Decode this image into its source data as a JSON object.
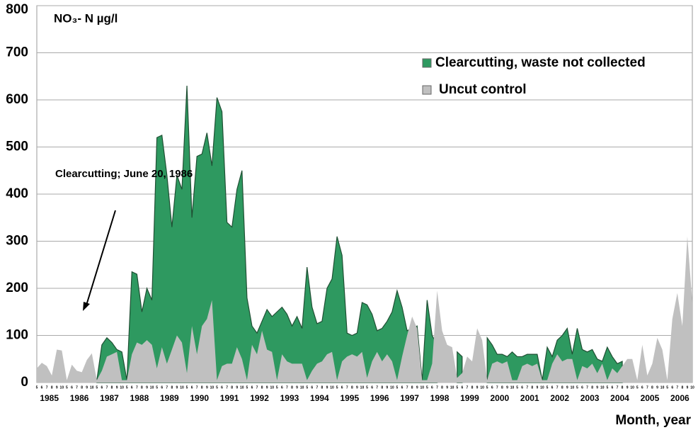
{
  "chart_data": {
    "type": "area",
    "title": "NO₃- N µg/l",
    "x_label": "Month, year",
    "annotation": "Clearcutting; June 20, 1986",
    "years": [
      "1985",
      "1986",
      "1987",
      "1988",
      "1989",
      "1990",
      "1991",
      "1992",
      "1993",
      "1994",
      "1995",
      "1996",
      "1997",
      "1998",
      "1999",
      "2000",
      "2001",
      "2002",
      "2003",
      "2004",
      "2005",
      "2006"
    ],
    "month_labels": [
      "5",
      "6",
      "7",
      "8",
      "9",
      "10"
    ],
    "ylim": [
      0,
      800
    ],
    "yticks": [
      0,
      100,
      200,
      300,
      400,
      500,
      600,
      700,
      800
    ],
    "grid": true,
    "legend": "upper right",
    "series": [
      {
        "name": "Clearcutting, waste not collected",
        "color": "#2e9960",
        "values": [
          null,
          null,
          null,
          null,
          null,
          null,
          null,
          null,
          null,
          null,
          null,
          null,
          5,
          80,
          95,
          85,
          70,
          65,
          5,
          235,
          230,
          150,
          200,
          175,
          520,
          525,
          440,
          330,
          440,
          410,
          630,
          350,
          480,
          485,
          530,
          460,
          605,
          575,
          340,
          330,
          410,
          450,
          180,
          120,
          105,
          130,
          155,
          140,
          150,
          160,
          145,
          120,
          140,
          115,
          245,
          160,
          125,
          130,
          200,
          220,
          310,
          270,
          105,
          100,
          105,
          170,
          165,
          145,
          110,
          115,
          130,
          150,
          195,
          160,
          110,
          115,
          120,
          5,
          175,
          100,
          80,
          null,
          null,
          null,
          65,
          55,
          null,
          null,
          null,
          null,
          95,
          80,
          60,
          60,
          55,
          65,
          55,
          55,
          60,
          60,
          60,
          5,
          75,
          55,
          90,
          100,
          115,
          60,
          115,
          70,
          65,
          70,
          50,
          45,
          75,
          55,
          40,
          45,
          null,
          null,
          null,
          null,
          null,
          null,
          null,
          null,
          null,
          null,
          null,
          null,
          null,
          null
        ]
      },
      {
        "name": "Uncut control",
        "color": "#c0c0c0",
        "values": [
          30,
          42,
          35,
          15,
          70,
          68,
          5,
          38,
          25,
          22,
          48,
          62,
          5,
          25,
          55,
          60,
          65,
          5,
          5,
          60,
          85,
          80,
          90,
          80,
          30,
          75,
          40,
          70,
          100,
          85,
          20,
          120,
          60,
          120,
          135,
          175,
          5,
          35,
          40,
          40,
          75,
          50,
          5,
          80,
          60,
          110,
          70,
          65,
          5,
          60,
          45,
          40,
          40,
          40,
          5,
          25,
          40,
          45,
          60,
          65,
          5,
          45,
          55,
          60,
          55,
          65,
          10,
          45,
          65,
          45,
          60,
          45,
          5,
          55,
          100,
          140,
          115,
          5,
          5,
          40,
          195,
          110,
          80,
          75,
          10,
          20,
          55,
          45,
          115,
          90,
          5,
          40,
          45,
          40,
          45,
          5,
          5,
          35,
          40,
          35,
          40,
          5,
          5,
          40,
          60,
          45,
          50,
          50,
          5,
          35,
          30,
          40,
          20,
          40,
          5,
          30,
          20,
          35,
          50,
          50,
          5,
          80,
          15,
          40,
          95,
          70,
          5,
          135,
          190,
          120,
          310,
          170
        ]
      }
    ]
  }
}
